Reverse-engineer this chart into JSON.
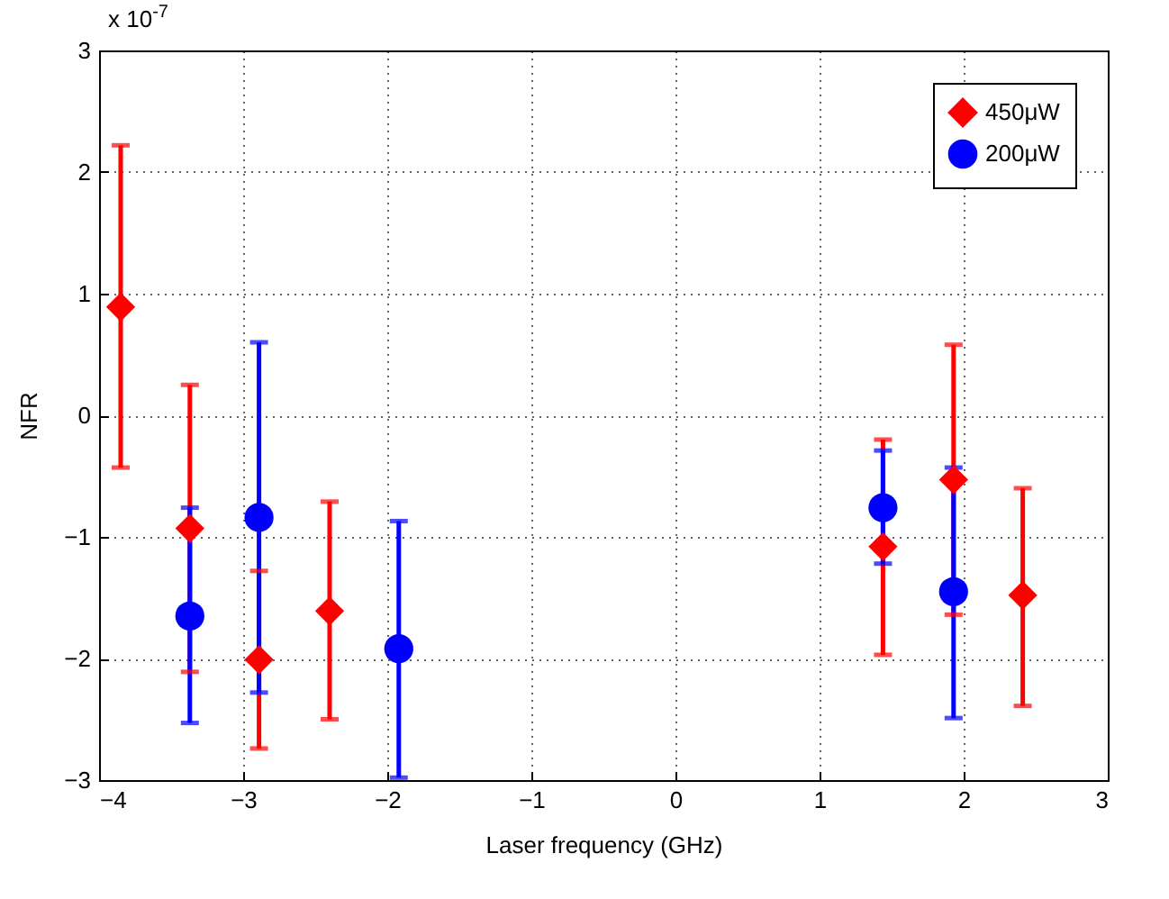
{
  "chart_data": {
    "type": "scatter",
    "xlabel": "Laser frequency (GHz)",
    "ylabel": "NFR",
    "annotations": [
      "x 10$^{-7}$"
    ],
    "xlim": [
      -4,
      3
    ],
    "xticks": [
      -4,
      -3,
      -2,
      -1,
      0,
      1,
      2,
      3
    ],
    "ylim": [
      -3,
      3
    ],
    "yticks": [
      -3,
      -2,
      -1,
      0,
      1,
      2,
      3
    ],
    "grid": true,
    "legend": "top right",
    "series": [
      {
        "name": "450μW",
        "color": "#ff0000",
        "marker": "diamond",
        "x": [
          -3.85,
          -3.37,
          -2.89,
          -2.4,
          1.44,
          1.93,
          2.41
        ],
        "values": [
          0.89,
          -0.93,
          -2.01,
          -1.61,
          -1.08,
          -0.53,
          -1.48
        ],
        "errors": [
          [
            -0.43,
            2.22
          ],
          [
            -2.11,
            0.25
          ],
          [
            -2.74,
            -1.28
          ],
          [
            -2.5,
            -0.71
          ],
          [
            -1.97,
            -0.2
          ],
          [
            -1.64,
            0.58
          ],
          [
            -2.39,
            -0.6
          ]
        ]
      },
      {
        "name": "200μW",
        "color": "#0000ff",
        "marker": "circle",
        "x": [
          -3.37,
          -2.89,
          -1.92,
          1.44,
          1.93
        ],
        "values": [
          -1.65,
          -0.84,
          -1.92,
          -0.76,
          -1.45
        ],
        "errors": [
          [
            -2.53,
            -0.76
          ],
          [
            -2.28,
            0.6
          ],
          [
            -2.98,
            -0.87
          ],
          [
            -1.22,
            -0.29
          ],
          [
            -2.49,
            -0.43
          ]
        ]
      }
    ]
  }
}
